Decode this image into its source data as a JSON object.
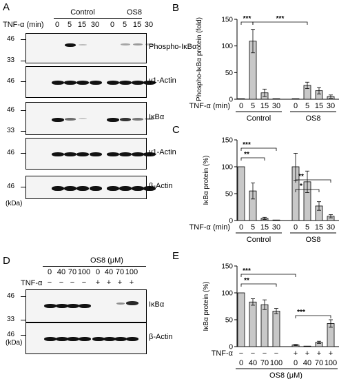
{
  "panels": {
    "A": {
      "letter": "A",
      "groups": [
        "Control",
        "OS8"
      ],
      "tnf_label": "TNF-α (min)",
      "lanes": [
        "0",
        "5",
        "15",
        "30",
        "0",
        "5",
        "15",
        "30"
      ],
      "blots": [
        {
          "label": "Phospho-IκBα",
          "mw": [
            "46",
            "33"
          ]
        },
        {
          "label": "γ1-Actin",
          "mw": [
            "46"
          ]
        },
        {
          "label": "IκBα",
          "mw": [
            "46",
            "33"
          ]
        },
        {
          "label": "γ1-Actin",
          "mw": [
            "46"
          ]
        },
        {
          "label": "β-Actin",
          "mw": [
            "46"
          ]
        }
      ],
      "kda": "(kDa)"
    },
    "D": {
      "letter": "D",
      "group": "OS8 (μM)",
      "conc": [
        "0",
        "40",
        "70",
        "100",
        "0",
        "40",
        "70",
        "100"
      ],
      "tnf_label": "TNF-α",
      "tnf": [
        "−",
        "−",
        "−",
        "−",
        "+",
        "+",
        "+",
        "+"
      ],
      "blots": [
        {
          "label": "IκBα",
          "mw": [
            "46",
            "33"
          ]
        },
        {
          "label": "β-Actin",
          "mw": [
            "46"
          ]
        }
      ],
      "kda": "(kDa)"
    }
  },
  "chart_data": [
    {
      "letter": "B",
      "type": "bar",
      "ylabel": "Phospho-IκBα protein (fold)",
      "ylim": [
        0,
        150
      ],
      "yticks": [
        0,
        50,
        100,
        150
      ],
      "xrow_label": "TNF-α (min)",
      "categories": [
        "0",
        "5",
        "15",
        "30",
        "0",
        "5",
        "15",
        "30"
      ],
      "groups": [
        "Control",
        "OS8"
      ],
      "values": [
        1,
        109,
        12,
        1,
        1,
        26,
        16,
        5
      ],
      "errors": [
        0,
        22,
        7,
        0,
        0,
        6,
        6,
        3
      ],
      "sig": [
        {
          "from": 0,
          "to": 1,
          "label": "***"
        },
        {
          "from": 1,
          "to": 5,
          "label": "***"
        }
      ]
    },
    {
      "letter": "C",
      "type": "bar",
      "ylabel": "IκBα protein (%)",
      "ylim": [
        0,
        150
      ],
      "yticks": [
        0,
        50,
        100,
        150
      ],
      "xrow_label": "TNF-α (min)",
      "categories": [
        "0",
        "5",
        "15",
        "30",
        "0",
        "5",
        "15",
        "30"
      ],
      "groups": [
        "Control",
        "OS8"
      ],
      "values": [
        100,
        55,
        4,
        1,
        100,
        72,
        27,
        8
      ],
      "errors": [
        0,
        15,
        2,
        0,
        25,
        20,
        8,
        3
      ],
      "sig": [
        {
          "from": 0,
          "to": 2,
          "label": "**"
        },
        {
          "from": 0,
          "to": 3,
          "label": "***"
        },
        {
          "from": 4,
          "to": 6,
          "label": "*"
        },
        {
          "from": 4,
          "to": 7,
          "label": "**"
        }
      ]
    },
    {
      "letter": "E",
      "type": "bar",
      "ylabel": "IκBα protein (%)",
      "ylim": [
        0,
        150
      ],
      "yticks": [
        0,
        50,
        100,
        150
      ],
      "xrow_label": "TNF-α",
      "tnf": [
        "−",
        "−",
        "−",
        "−",
        "+",
        "+",
        "+",
        "+"
      ],
      "categories": [
        "0",
        "40",
        "70",
        "100",
        "0",
        "40",
        "70",
        "100"
      ],
      "group": "OS8 (μM)",
      "values": [
        100,
        83,
        78,
        66,
        3,
        1,
        8,
        43
      ],
      "errors": [
        0,
        6,
        9,
        5,
        1,
        0,
        2,
        7
      ],
      "sig": [
        {
          "from": 0,
          "to": 3,
          "label": "**"
        },
        {
          "from": 0,
          "to": 4,
          "label": "***"
        },
        {
          "from": 4,
          "to": 7,
          "label": "***"
        }
      ]
    }
  ]
}
